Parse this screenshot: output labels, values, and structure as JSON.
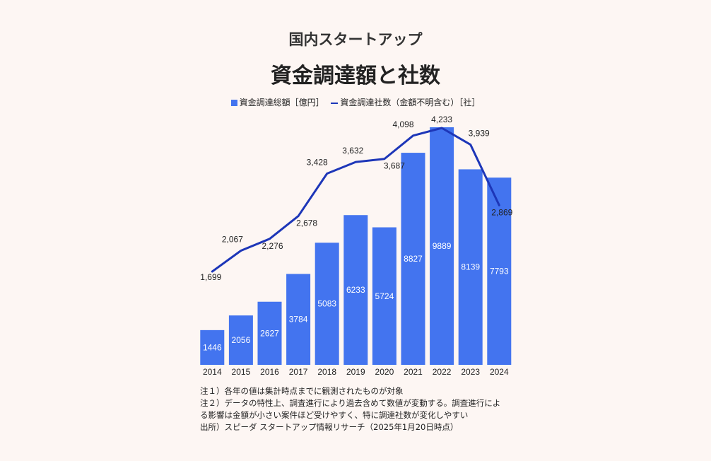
{
  "title": {
    "line1": "国内スタートアップ",
    "line2": "資金調達額と社数"
  },
  "legend": {
    "bar_label": "資金調達総額［億円］",
    "line_label": "資金調達社数（金額不明含む）［社］"
  },
  "colors": {
    "bar": "#4374ef",
    "line": "#1d36b8",
    "background": "#fdf6f3"
  },
  "chart_data": {
    "type": "bar+line",
    "title": "資金調達額と社数",
    "categories": [
      "2014",
      "2015",
      "2016",
      "2017",
      "2018",
      "2019",
      "2020",
      "2021",
      "2022",
      "2023",
      "2024"
    ],
    "series": [
      {
        "name": "資金調達総額［億円］",
        "type": "bar",
        "values": [
          1446,
          2056,
          2627,
          3784,
          5083,
          6233,
          5724,
          8827,
          9889,
          8139,
          7793
        ],
        "labels": [
          "1446",
          "2056",
          "2627",
          "3784",
          "5083",
          "6233",
          "5724",
          "8827",
          "9889",
          "8139",
          "7793"
        ]
      },
      {
        "name": "資金調達社数（金額不明含む）［社］",
        "type": "line",
        "values": [
          1699,
          2067,
          2276,
          2678,
          3428,
          3632,
          3687,
          4098,
          4233,
          3939,
          2869
        ],
        "labels": [
          "1,699",
          "2,067",
          "2,276",
          "2,678",
          "3,428",
          "3,632",
          "3,687",
          "4,098",
          "4,233",
          "3,939",
          "2,869"
        ]
      }
    ],
    "legend_position": "top-center",
    "grid": false
  },
  "notes": [
    "注１）各年の値は集計時点までに観測されたものが対象",
    "注２）データの特性上、調査進行により過去含めて数値が変動する。調査進行によ",
    "る影響は金額が小さい案件ほど受けやすく、特に調達社数が変化しやすい",
    "出所）スピーダ スタートアップ情報リサーチ（2025年1月20日時点）"
  ]
}
